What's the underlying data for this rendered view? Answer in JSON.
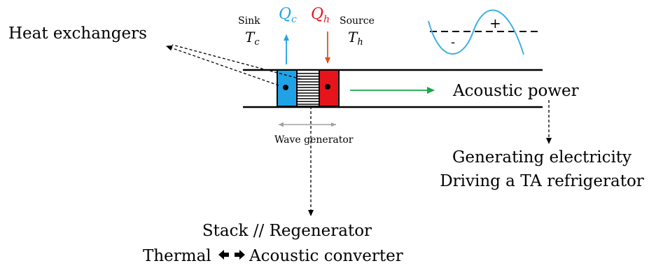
{
  "labels": {
    "heat_exchangers": "Heat exchangers",
    "sink": "Sink",
    "sink_temp": "T",
    "sink_temp_sub": "c",
    "source": "Source",
    "source_temp": "T",
    "source_temp_sub": "h",
    "qc": "Q",
    "qc_sub": "c",
    "qh": "Q",
    "qh_sub": "h",
    "acoustic_power": "Acoustic power",
    "wave_generator": "Wave generator",
    "generating_electricity": "Generating electricity",
    "driving_refrigerator": "Driving a TA refrigerator",
    "stack_regenerator": "Stack // Regenerator",
    "thermal": "Thermal",
    "acoustic_converter": "Acoustic converter",
    "plus": "+",
    "minus": "-"
  },
  "colors": {
    "cold": "#1fa3e6",
    "hot": "#e8141b",
    "qc_text": "#1fa3e6",
    "qh_text": "#e8141b",
    "qh_arrow": "#d9531e",
    "power_arrow": "#1aa64a",
    "wave": "#3fb0e6",
    "line": "#000000",
    "gray_arrow": "#a0a0a0"
  },
  "icons": {
    "double_arrow": "bidirectional-arrow-icon"
  }
}
